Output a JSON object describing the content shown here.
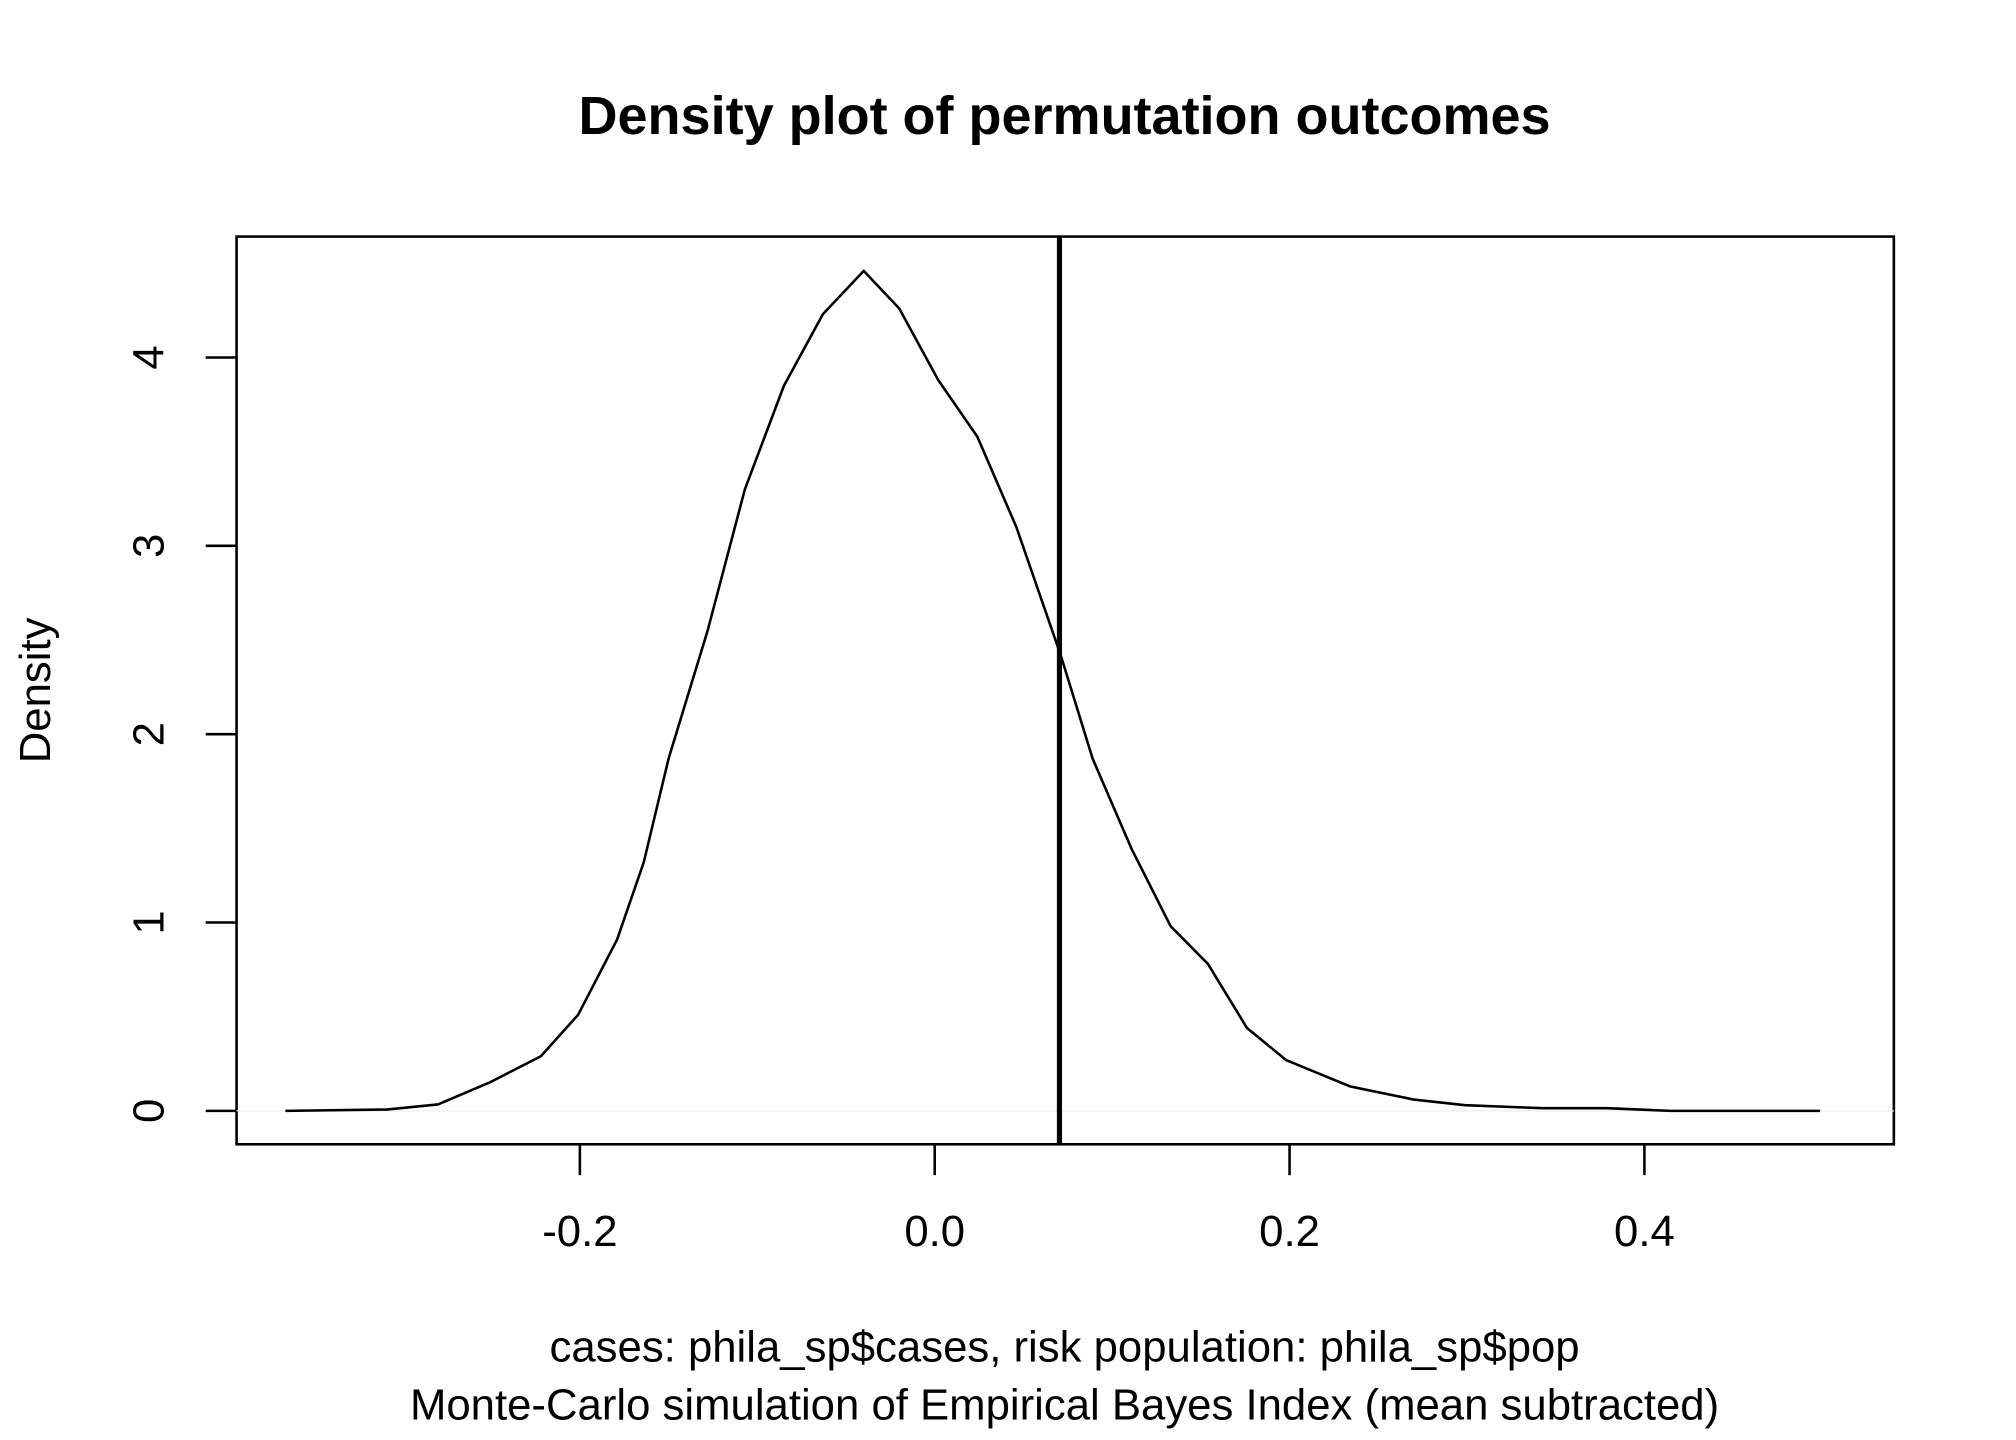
{
  "chart_data": {
    "type": "line",
    "title": "Density plot of permutation outcomes",
    "y_label": "Density",
    "x_label_lines": [
      "cases: phila_sp$cases, risk population: phila_sp$pop",
      "Monte-Carlo simulation of Empirical Bayes Index (mean subtracted)"
    ],
    "x": [
      -0.366,
      -0.309,
      -0.28,
      -0.251,
      -0.222,
      -0.201,
      -0.179,
      -0.164,
      -0.15,
      -0.128,
      -0.107,
      -0.085,
      -0.063,
      -0.04,
      -0.02,
      0.002,
      0.024,
      0.046,
      0.071,
      0.089,
      0.111,
      0.133,
      0.154,
      0.176,
      0.198,
      0.234,
      0.27,
      0.299,
      0.343,
      0.379,
      0.415,
      0.499
    ],
    "series": [
      {
        "color": "#000000",
        "values": [
          0,
          0.007,
          0.034,
          0.15,
          0.29,
          0.51,
          0.91,
          1.32,
          1.87,
          2.55,
          3.3,
          3.85,
          4.23,
          4.46,
          4.26,
          3.88,
          3.58,
          3.1,
          2.42,
          1.87,
          1.39,
          0.98,
          0.78,
          0.44,
          0.27,
          0.13,
          0.06,
          0.03,
          0.014,
          0.014,
          0,
          0
        ]
      }
    ],
    "vline": 0.0703,
    "xlim": [
      -0.3935,
      0.5406
    ],
    "ylim": [
      -0.1775,
      4.642
    ],
    "xticks": [
      {
        "value": -0.2,
        "label": "-0.2"
      },
      {
        "value": 0,
        "label": "0.0"
      },
      {
        "value": 0.2,
        "label": "0.2"
      },
      {
        "value": 0.4,
        "label": "0.4"
      }
    ],
    "yticks": [
      0,
      1,
      2,
      3,
      4
    ]
  }
}
